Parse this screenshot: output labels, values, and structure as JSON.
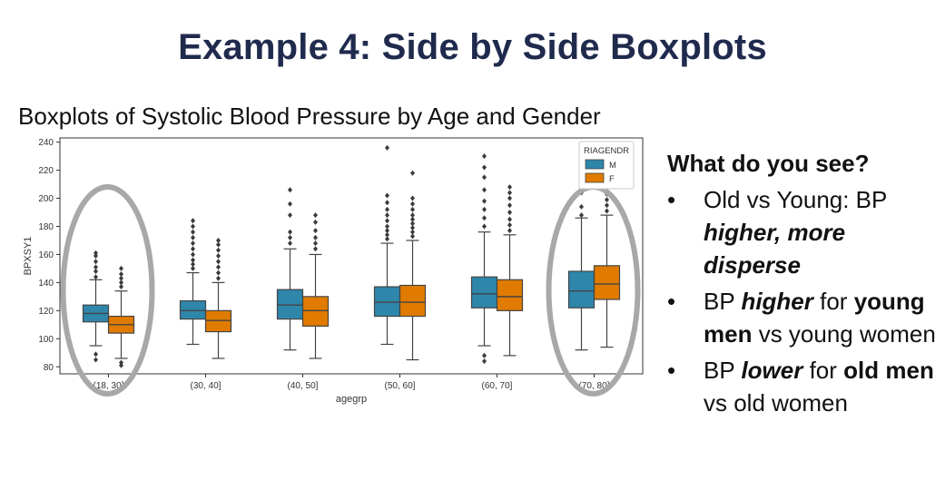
{
  "slide": {
    "title": "Example 4: Side by Side Boxplots",
    "chart_caption": "Boxplots of Systolic Blood Pressure by Age and Gender"
  },
  "chart_data": {
    "type": "box",
    "title": "",
    "xlabel": "agegrp",
    "ylabel": "BPXSY1",
    "ylim": [
      75,
      243
    ],
    "yticks": [
      80,
      100,
      120,
      140,
      160,
      180,
      200,
      220,
      240
    ],
    "categories": [
      "(18, 30]",
      "(30, 40]",
      "(40, 50]",
      "(50, 60]",
      "(60, 70]",
      "(70, 80]"
    ],
    "legend": {
      "title": "RIAGENDR",
      "position": "top-right",
      "entries": [
        "M",
        "F"
      ]
    },
    "series": [
      {
        "name": "M",
        "color": "#2e86ab",
        "boxes": [
          {
            "whisker_low": 95,
            "q1": 112,
            "median": 118,
            "q3": 124,
            "whisker_high": 142,
            "outliers": [
              85,
              89,
              144,
              148,
              151,
              155,
              159,
              161
            ]
          },
          {
            "whisker_low": 96,
            "q1": 114,
            "median": 120,
            "q3": 127,
            "whisker_high": 147,
            "outliers": [
              150,
              153,
              156,
              160,
              164,
              168,
              172,
              176,
              180,
              184
            ]
          },
          {
            "whisker_low": 92,
            "q1": 114,
            "median": 124,
            "q3": 135,
            "whisker_high": 164,
            "outliers": [
              168,
              172,
              176,
              188,
              196,
              206
            ]
          },
          {
            "whisker_low": 96,
            "q1": 116,
            "median": 126,
            "q3": 137,
            "whisker_high": 168,
            "outliers": [
              171,
              174,
              177,
              180,
              184,
              188,
              192,
              197,
              202,
              236
            ]
          },
          {
            "whisker_low": 95,
            "q1": 122,
            "median": 132,
            "q3": 144,
            "whisker_high": 176,
            "outliers": [
              84,
              88,
              180,
              186,
              192,
              198,
              206,
              215,
              222,
              230
            ]
          },
          {
            "whisker_low": 92,
            "q1": 122,
            "median": 134,
            "q3": 148,
            "whisker_high": 186,
            "outliers": [
              188,
              194,
              204
            ]
          }
        ]
      },
      {
        "name": "F",
        "color": "#e07b00",
        "boxes": [
          {
            "whisker_low": 86,
            "q1": 104,
            "median": 110,
            "q3": 116,
            "whisker_high": 134,
            "outliers": [
              81,
              83,
              137,
              140,
              143,
              146,
              150
            ]
          },
          {
            "whisker_low": 86,
            "q1": 105,
            "median": 113,
            "q3": 120,
            "whisker_high": 140,
            "outliers": [
              143,
              147,
              151,
              155,
              159,
              163,
              167,
              170
            ]
          },
          {
            "whisker_low": 86,
            "q1": 109,
            "median": 120,
            "q3": 130,
            "whisker_high": 160,
            "outliers": [
              164,
              168,
              172,
              177,
              183,
              188
            ]
          },
          {
            "whisker_low": 85,
            "q1": 116,
            "median": 126,
            "q3": 138,
            "whisker_high": 170,
            "outliers": [
              173,
              176,
              179,
              182,
              185,
              188,
              192,
              196,
              200,
              218
            ]
          },
          {
            "whisker_low": 88,
            "q1": 120,
            "median": 130,
            "q3": 142,
            "whisker_high": 174,
            "outliers": [
              177,
              181,
              185,
              190,
              195,
              200,
              204,
              208
            ]
          },
          {
            "whisker_low": 94,
            "q1": 128,
            "median": 139,
            "q3": 152,
            "whisker_high": 188,
            "outliers": [
              191,
              195,
              199,
              203,
              207,
              211
            ]
          }
        ]
      }
    ],
    "annotations": [
      {
        "type": "circle",
        "category": "(18, 30]",
        "color": "#a8a8a8"
      },
      {
        "type": "circle",
        "category": "(70, 80]",
        "color": "#a8a8a8"
      }
    ]
  },
  "bullets": {
    "heading": "What do you see?",
    "items": [
      {
        "parts": [
          {
            "t": "Old vs Young: BP ",
            "s": "n"
          },
          {
            "t": "higher, more disperse",
            "s": "bi"
          }
        ]
      },
      {
        "parts": [
          {
            "t": "BP ",
            "s": "n"
          },
          {
            "t": "higher",
            "s": "bi"
          },
          {
            "t": " for ",
            "s": "n"
          },
          {
            "t": "young men",
            "s": "b"
          },
          {
            "t": " vs young women",
            "s": "n"
          }
        ]
      },
      {
        "parts": [
          {
            "t": "BP ",
            "s": "n"
          },
          {
            "t": "lower",
            "s": "bi"
          },
          {
            "t": " for ",
            "s": "n"
          },
          {
            "t": "old men",
            "s": "b"
          },
          {
            "t": " vs old women",
            "s": "n"
          }
        ]
      }
    ],
    "bullet_glyph": "•"
  }
}
